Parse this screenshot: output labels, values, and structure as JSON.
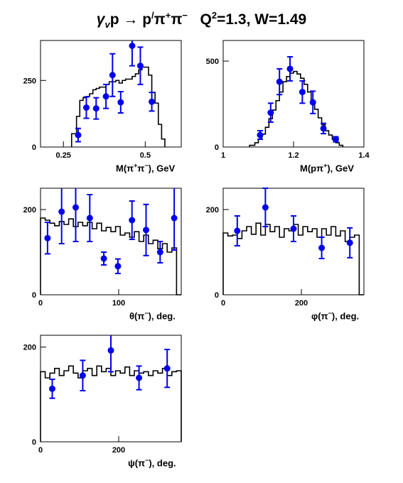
{
  "title": {
    "gamma": "γ",
    "gamma_sub": "v",
    "rest1": "p → p",
    "p_sup": "/",
    "pi1": "π",
    "pi1_sup": "+",
    "pi2": "π",
    "pi2_sup": "−",
    "q": "Q",
    "q_sup": "2",
    "q_rest": "=1.3, W=1.49"
  },
  "colors": {
    "data": "#0000ee",
    "mc": "#000000",
    "axis": "#000000",
    "background": "#ffffff"
  },
  "chart_data": [
    {
      "id": "m_pipi",
      "type": "histogram+points",
      "xlabel": "M(π+π−), GeV",
      "xlabel_parts": {
        "pre": "M(π",
        "sup1": "+",
        "mid": "π",
        "sup2": "−",
        "post": "), GeV"
      },
      "xlim": [
        0.18,
        0.61
      ],
      "ylim": [
        0,
        400
      ],
      "xticks": [
        0.25,
        0.5
      ],
      "xtick_labels": [
        "0.25",
        "0.5"
      ],
      "yticks": [
        0,
        250
      ],
      "ytick_labels": [
        "0",
        "250"
      ],
      "points": [
        {
          "x": 0.295,
          "y": 45,
          "err": 25
        },
        {
          "x": 0.32,
          "y": 148,
          "err": 40
        },
        {
          "x": 0.35,
          "y": 145,
          "err": 40
        },
        {
          "x": 0.38,
          "y": 190,
          "err": 45
        },
        {
          "x": 0.4,
          "y": 270,
          "err": 80
        },
        {
          "x": 0.425,
          "y": 168,
          "err": 40
        },
        {
          "x": 0.46,
          "y": 380,
          "err": 75
        },
        {
          "x": 0.485,
          "y": 305,
          "err": 70
        },
        {
          "x": 0.52,
          "y": 170,
          "err": 35
        }
      ],
      "histogram": {
        "edges": [
          0.275,
          0.29,
          0.3,
          0.31,
          0.32,
          0.33,
          0.34,
          0.35,
          0.36,
          0.37,
          0.38,
          0.39,
          0.4,
          0.41,
          0.42,
          0.43,
          0.44,
          0.45,
          0.46,
          0.47,
          0.48,
          0.49,
          0.5,
          0.51,
          0.52,
          0.53,
          0.54,
          0.55,
          0.56
        ],
        "values": [
          50,
          115,
          175,
          185,
          190,
          200,
          215,
          220,
          225,
          225,
          235,
          245,
          245,
          250,
          240,
          250,
          255,
          255,
          265,
          275,
          290,
          300,
          300,
          270,
          205,
          165,
          85,
          30
        ]
      }
    },
    {
      "id": "m_ppi",
      "type": "histogram+points",
      "xlabel": "M(pπ+), GeV",
      "xlabel_parts": {
        "pre": "M(pπ",
        "sup1": "+",
        "mid": "",
        "sup2": "",
        "post": "), GeV"
      },
      "xlim": [
        1.0,
        1.4
      ],
      "ylim": [
        0,
        620
      ],
      "xticks": [
        1.0,
        1.2,
        1.4
      ],
      "xtick_labels": [
        "1",
        "1.2",
        "1.4"
      ],
      "yticks": [
        0,
        500
      ],
      "ytick_labels": [
        "0",
        "500"
      ],
      "points": [
        {
          "x": 1.105,
          "y": 70,
          "err": 25
        },
        {
          "x": 1.135,
          "y": 200,
          "err": 55
        },
        {
          "x": 1.16,
          "y": 380,
          "err": 75
        },
        {
          "x": 1.19,
          "y": 455,
          "err": 70
        },
        {
          "x": 1.225,
          "y": 320,
          "err": 65
        },
        {
          "x": 1.255,
          "y": 260,
          "err": 65
        },
        {
          "x": 1.285,
          "y": 108,
          "err": 30
        },
        {
          "x": 1.32,
          "y": 45,
          "err": 15
        }
      ],
      "histogram": {
        "edges": [
          1.075,
          1.09,
          1.1,
          1.11,
          1.12,
          1.13,
          1.14,
          1.15,
          1.16,
          1.17,
          1.18,
          1.19,
          1.2,
          1.21,
          1.22,
          1.23,
          1.24,
          1.25,
          1.26,
          1.27,
          1.28,
          1.29,
          1.3,
          1.31,
          1.32,
          1.33,
          1.34
        ],
        "values": [
          10,
          25,
          45,
          75,
          115,
          165,
          215,
          270,
          320,
          380,
          410,
          430,
          440,
          425,
          400,
          365,
          320,
          270,
          220,
          170,
          130,
          95,
          70,
          45,
          25,
          10
        ]
      }
    },
    {
      "id": "theta",
      "type": "histogram+points",
      "xlabel": "θ(π−), deg.",
      "xlabel_parts": {
        "pre": "θ(π",
        "sup1": "−",
        "mid": "",
        "sup2": "",
        "post": "), deg."
      },
      "xlim": [
        0,
        180
      ],
      "ylim": [
        0,
        250
      ],
      "xticks": [
        0,
        100
      ],
      "xtick_labels": [
        "0",
        "100"
      ],
      "yticks": [
        0,
        200
      ],
      "ytick_labels": [
        "0",
        "200"
      ],
      "points": [
        {
          "x": 9,
          "y": 133,
          "err": 37
        },
        {
          "x": 27,
          "y": 195,
          "err": 75
        },
        {
          "x": 45,
          "y": 205,
          "err": 80
        },
        {
          "x": 63,
          "y": 180,
          "err": 55
        },
        {
          "x": 81,
          "y": 85,
          "err": 15
        },
        {
          "x": 99,
          "y": 67,
          "err": 17
        },
        {
          "x": 117,
          "y": 175,
          "err": 45
        },
        {
          "x": 135,
          "y": 152,
          "err": 60
        },
        {
          "x": 153,
          "y": 100,
          "err": 25
        },
        {
          "x": 171,
          "y": 180,
          "err": 75
        }
      ],
      "histogram": {
        "edges": [
          0,
          6,
          12,
          18,
          24,
          30,
          36,
          42,
          48,
          54,
          60,
          66,
          72,
          78,
          84,
          90,
          96,
          102,
          108,
          114,
          120,
          126,
          132,
          138,
          144,
          150,
          156,
          162,
          168,
          174,
          180
        ],
        "values": [
          180,
          175,
          168,
          162,
          172,
          165,
          178,
          160,
          170,
          162,
          170,
          155,
          168,
          150,
          158,
          148,
          160,
          140,
          145,
          135,
          148,
          125,
          140,
          120,
          128,
          108,
          120,
          100,
          110,
          0
        ]
      }
    },
    {
      "id": "phi",
      "type": "histogram+points",
      "xlabel": "φ(π−), deg.",
      "xlabel_parts": {
        "pre": "φ(π",
        "sup1": "−",
        "mid": "",
        "sup2": "",
        "post": "), deg."
      },
      "xlim": [
        0,
        360
      ],
      "ylim": [
        0,
        250
      ],
      "xticks": [
        0,
        200
      ],
      "xtick_labels": [
        "0",
        "200"
      ],
      "yticks": [
        0,
        200
      ],
      "ytick_labels": [
        "0",
        "200"
      ],
      "points": [
        {
          "x": 36,
          "y": 150,
          "err": 35
        },
        {
          "x": 108,
          "y": 205,
          "err": 45
        },
        {
          "x": 180,
          "y": 155,
          "err": 30
        },
        {
          "x": 252,
          "y": 110,
          "err": 25
        },
        {
          "x": 324,
          "y": 122,
          "err": 35
        }
      ],
      "histogram": {
        "edges": [
          0,
          12,
          24,
          36,
          48,
          60,
          72,
          84,
          96,
          108,
          120,
          132,
          144,
          156,
          168,
          180,
          192,
          204,
          216,
          228,
          240,
          252,
          264,
          276,
          288,
          300,
          312,
          324,
          336,
          348,
          360
        ],
        "values": [
          145,
          138,
          140,
          132,
          150,
          160,
          142,
          168,
          140,
          165,
          148,
          160,
          135,
          155,
          150,
          165,
          140,
          160,
          148,
          155,
          135,
          155,
          140,
          160,
          138,
          150,
          125,
          135,
          140,
          0
        ]
      }
    },
    {
      "id": "psi",
      "type": "histogram+points",
      "xlabel": "ψ(π−), deg.",
      "xlabel_parts": {
        "pre": "ψ(π",
        "sup1": "−",
        "mid": "",
        "sup2": "",
        "post": "), deg."
      },
      "xlim": [
        0,
        360
      ],
      "ylim": [
        0,
        225
      ],
      "xticks": [
        0,
        200
      ],
      "xtick_labels": [
        "0",
        "200"
      ],
      "yticks": [
        0,
        200
      ],
      "ytick_labels": [
        "0",
        "200"
      ],
      "points": [
        {
          "x": 30,
          "y": 112,
          "err": 20
        },
        {
          "x": 108,
          "y": 140,
          "err": 32
        },
        {
          "x": 180,
          "y": 193,
          "err": 45
        },
        {
          "x": 252,
          "y": 135,
          "err": 25
        },
        {
          "x": 324,
          "y": 155,
          "err": 40
        }
      ],
      "histogram": {
        "edges": [
          0,
          12,
          24,
          36,
          48,
          60,
          72,
          84,
          96,
          108,
          120,
          132,
          144,
          156,
          168,
          180,
          192,
          204,
          216,
          228,
          240,
          252,
          264,
          276,
          288,
          300,
          312,
          324,
          336,
          348,
          360
        ],
        "values": [
          148,
          135,
          145,
          155,
          140,
          150,
          160,
          145,
          135,
          150,
          155,
          140,
          160,
          148,
          155,
          140,
          150,
          145,
          158,
          140,
          150,
          145,
          148,
          140,
          150,
          145,
          155,
          140,
          148,
          150
        ]
      }
    }
  ]
}
